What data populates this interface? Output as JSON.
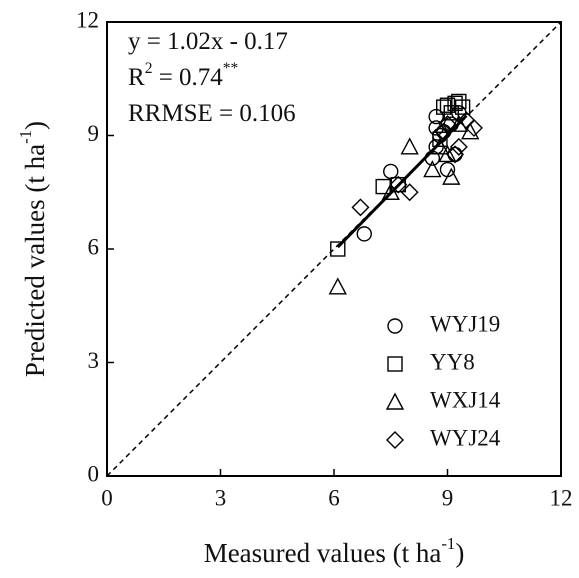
{
  "chart_data": {
    "type": "scatter",
    "xlabel": [
      {
        "text": "Measured values (t ha"
      },
      {
        "text": "-1",
        "sup": true
      },
      {
        "text": ")"
      }
    ],
    "ylabel": [
      {
        "text": "Predicted values (t ha"
      },
      {
        "text": "-1",
        "sup": true
      },
      {
        "text": ")"
      }
    ],
    "annotations": [
      [
        {
          "text": "y = 1.02x - 0.17"
        }
      ],
      [
        {
          "text": "R"
        },
        {
          "text": "2",
          "sup": true
        },
        {
          "text": " = 0.74"
        },
        {
          "text": "**",
          "sup": true
        }
      ],
      [
        {
          "text": "RRMSE = 0.106"
        }
      ]
    ],
    "xlim": [
      0,
      12
    ],
    "ylim": [
      0,
      12
    ],
    "xticks": [
      0,
      3,
      6,
      9,
      12
    ],
    "yticks": [
      0,
      3,
      6,
      9,
      12
    ],
    "one_to_one_line": true,
    "fit_line": {
      "x": [
        6.1,
        9.45
      ],
      "y": [
        6.05,
        9.47
      ]
    },
    "legend": "lower right",
    "series": [
      {
        "name": "WYJ19",
        "marker": "circle",
        "color": "#000000",
        "x": [
          8.7,
          8.7,
          8.9,
          7.5,
          6.8,
          9.0,
          8.7,
          9.1,
          9.3,
          8.8,
          9.2,
          8.6
        ],
        "values": [
          9.5,
          9.2,
          9.1,
          8.05,
          6.4,
          8.1,
          8.7,
          9.3,
          9.6,
          9.0,
          8.5,
          8.4
        ]
      },
      {
        "name": "YY8",
        "marker": "square",
        "color": "#000000",
        "x": [
          6.1,
          7.3,
          7.7,
          9.0,
          9.2,
          9.3,
          9.4,
          8.9,
          9.1,
          8.8
        ],
        "values": [
          6.0,
          7.65,
          7.7,
          9.8,
          9.85,
          9.9,
          9.75,
          9.75,
          9.6,
          8.9
        ]
      },
      {
        "name": "WXJ14",
        "marker": "triangle",
        "color": "#000000",
        "x": [
          6.1,
          8.0,
          9.1,
          8.6,
          7.5,
          9.6,
          9.0,
          8.8,
          9.3
        ],
        "values": [
          5.0,
          8.7,
          7.9,
          8.1,
          7.5,
          9.1,
          8.5,
          8.7,
          9.3
        ]
      },
      {
        "name": "WYJ24",
        "marker": "diamond",
        "color": "#000000",
        "x": [
          6.7,
          8.0,
          7.7,
          9.2,
          9.3,
          9.7,
          9.5,
          8.9,
          9.0
        ],
        "values": [
          7.1,
          7.5,
          7.7,
          8.5,
          8.7,
          9.2,
          9.4,
          9.1,
          9.3
        ]
      }
    ]
  }
}
